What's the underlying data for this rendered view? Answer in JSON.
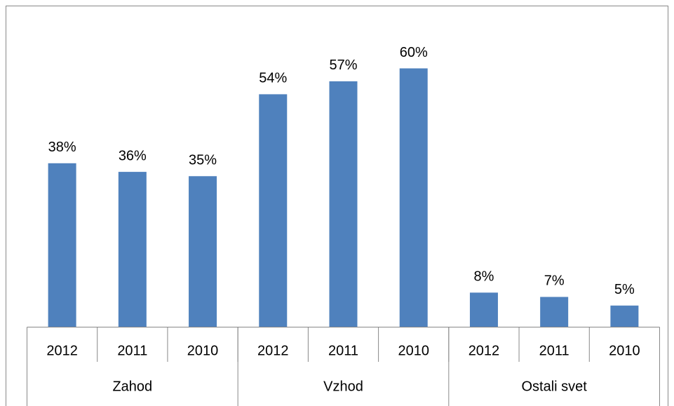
{
  "chart_data": {
    "type": "bar",
    "categories": [
      "2012",
      "2011",
      "2010",
      "2012",
      "2011",
      "2010",
      "2012",
      "2011",
      "2010"
    ],
    "groups": [
      "Zahod",
      "Vzhod",
      "Ostali svet"
    ],
    "values": [
      38,
      36,
      35,
      54,
      57,
      60,
      8,
      7,
      5
    ],
    "value_labels": [
      "38%",
      "36%",
      "35%",
      "54%",
      "57%",
      "60%",
      "8%",
      "7%",
      "5%"
    ],
    "color": "#4f81bd",
    "ylim": [
      0,
      70
    ]
  }
}
